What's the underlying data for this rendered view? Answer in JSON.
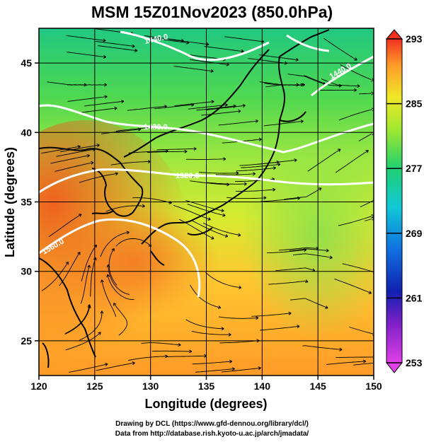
{
  "title": "MSM 15Z01Nov2023 (850.0hPa)",
  "xaxis": {
    "label": "Longitude (degrees)",
    "min": 120,
    "max": 150,
    "ticks": [
      "120",
      "125",
      "130",
      "135",
      "140",
      "145",
      "150"
    ]
  },
  "yaxis": {
    "label": "Latitude  (degrees)",
    "min": 22.5,
    "max": 47.5,
    "ticks": [
      "25",
      "30",
      "35",
      "40",
      "45"
    ]
  },
  "colorbar": {
    "min": 253,
    "max": 293,
    "ticks": [
      "253",
      "261",
      "269",
      "277",
      "285",
      "293"
    ]
  },
  "contours": [
    {
      "label": "1440.0"
    },
    {
      "label": "1480.0"
    },
    {
      "label": "1520.0"
    },
    {
      "label": "1560.0"
    },
    {
      "label": "1440.0"
    }
  ],
  "credits": {
    "line1": "Drawing by DCL (https://www.gfd-dennou.org/library/dcl/)",
    "line2": "Data from http://database.rish.kyoto-u.ac.jp/arch/jmadata/"
  }
}
